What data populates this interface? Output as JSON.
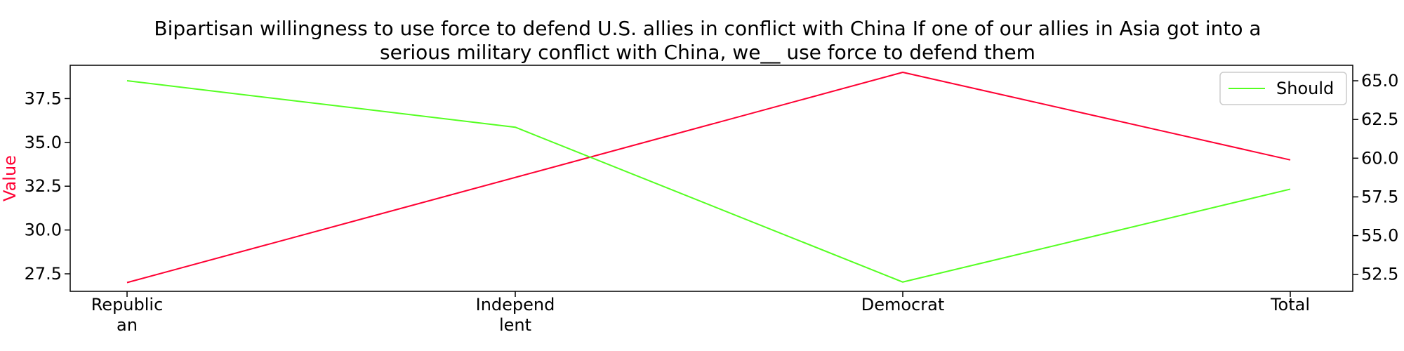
{
  "chart_data": {
    "type": "line",
    "title_lines": [
      "Bipartisan willingness to use force to defend U.S. allies in conflict with China If one of our allies in Asia got into a",
      "serious military conflict with China, we__ use force to defend them"
    ],
    "categories": [
      [
        "Republic",
        "an"
      ],
      [
        "Independ",
        "lent"
      ],
      [
        "Democrat"
      ],
      [
        "Total"
      ]
    ],
    "ylabel_left": "Value",
    "ylabel_left_color": "#ff0033",
    "ylim_left": [
      26.5,
      39.4
    ],
    "yticks_left": [
      27.5,
      30.0,
      32.5,
      35.0,
      37.5
    ],
    "yticks_left_labels": [
      "27.5",
      "30.0",
      "32.5",
      "35.0",
      "37.5"
    ],
    "ylim_right": [
      51.4,
      66.0
    ],
    "yticks_right": [
      52.5,
      55.0,
      57.5,
      60.0,
      62.5,
      65.0
    ],
    "yticks_right_labels": [
      "52.5",
      "55.0",
      "57.5",
      "60.0",
      "62.5",
      "65.0"
    ],
    "series": [
      {
        "values": [
          27,
          33,
          39,
          34
        ],
        "axis": "left",
        "color": "#ff0033"
      },
      {
        "name": "Should",
        "values": [
          65,
          62,
          52,
          58
        ],
        "axis": "right",
        "color": "#55ff22"
      }
    ],
    "legend_position": "top-right",
    "grid": false
  }
}
